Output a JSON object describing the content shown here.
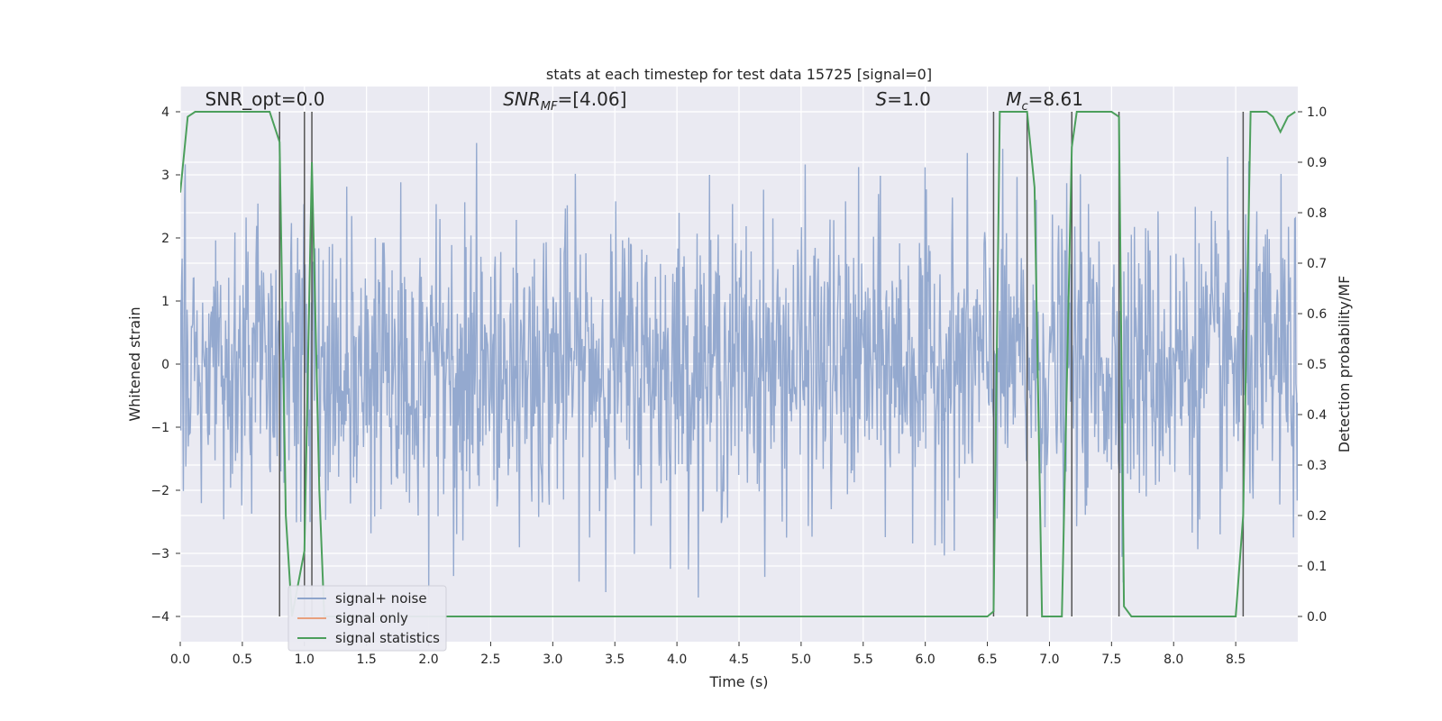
{
  "chart_data": {
    "type": "line",
    "title": "stats at each timestep for test data 15725 [signal=0]",
    "xlabel": "Time (s)",
    "ylabel": "Whitened strain",
    "y2label": "Detection probability/MF",
    "xlim": [
      0.0,
      9.0
    ],
    "ylim": [
      -4.4,
      4.4
    ],
    "y2lim": [
      -0.05,
      1.05
    ],
    "xticks": [
      0.0,
      0.5,
      1.0,
      1.5,
      2.0,
      2.5,
      3.0,
      3.5,
      4.0,
      4.5,
      5.0,
      5.5,
      6.0,
      6.5,
      7.0,
      7.5,
      8.0,
      8.5
    ],
    "yticks": [
      -4,
      -3,
      -2,
      -1,
      0,
      1,
      2,
      3,
      4
    ],
    "y2ticks": [
      0.0,
      0.1,
      0.2,
      0.3,
      0.4,
      0.5,
      0.6,
      0.7,
      0.8,
      0.9,
      1.0
    ],
    "grid": true,
    "legend_position": "lower-left",
    "annotations": [
      {
        "text": "SNR_opt=0.0",
        "x": 0.2,
        "y": 4.1
      },
      {
        "text": "SNR_MF=[4.06]",
        "x": 2.6,
        "y": 4.1
      },
      {
        "text": "S=1.0",
        "x": 5.6,
        "y": 4.1
      },
      {
        "text": "M_c=8.61",
        "x": 6.65,
        "y": 4.1
      }
    ],
    "vertical_markers": [
      0.8,
      1.0,
      1.06,
      6.55,
      6.82,
      7.18,
      7.56,
      8.56
    ],
    "series": [
      {
        "name": "signal+ noise",
        "color": "#8fa5cc",
        "axis": "left",
        "style": "noise",
        "t_range": [
          0.0,
          9.0
        ],
        "amplitude_sigma": 1.0,
        "sample_count": 1800
      },
      {
        "name": "signal only",
        "color": "#e8a07e",
        "axis": "left",
        "x": [],
        "y": []
      },
      {
        "name": "signal statistics",
        "color": "#4c9f5c",
        "axis": "right",
        "x": [
          0.0,
          0.06,
          0.12,
          0.5,
          0.72,
          0.8,
          0.85,
          0.9,
          1.0,
          1.06,
          1.12,
          1.16,
          1.3,
          6.5,
          6.55,
          6.6,
          6.82,
          6.88,
          6.94,
          7.1,
          7.18,
          7.22,
          7.5,
          7.56,
          7.6,
          7.66,
          8.5,
          8.56,
          8.62,
          8.75,
          8.8,
          8.86,
          8.92,
          8.98
        ],
        "y": [
          0.84,
          0.99,
          1.0,
          1.0,
          1.0,
          0.94,
          0.2,
          0.0,
          0.13,
          0.9,
          0.25,
          0.0,
          0.0,
          0.0,
          0.01,
          1.0,
          1.0,
          0.85,
          0.0,
          0.0,
          0.93,
          1.0,
          1.0,
          0.99,
          0.02,
          0.0,
          0.0,
          0.2,
          1.0,
          1.0,
          0.99,
          0.96,
          0.99,
          1.0
        ]
      }
    ]
  }
}
